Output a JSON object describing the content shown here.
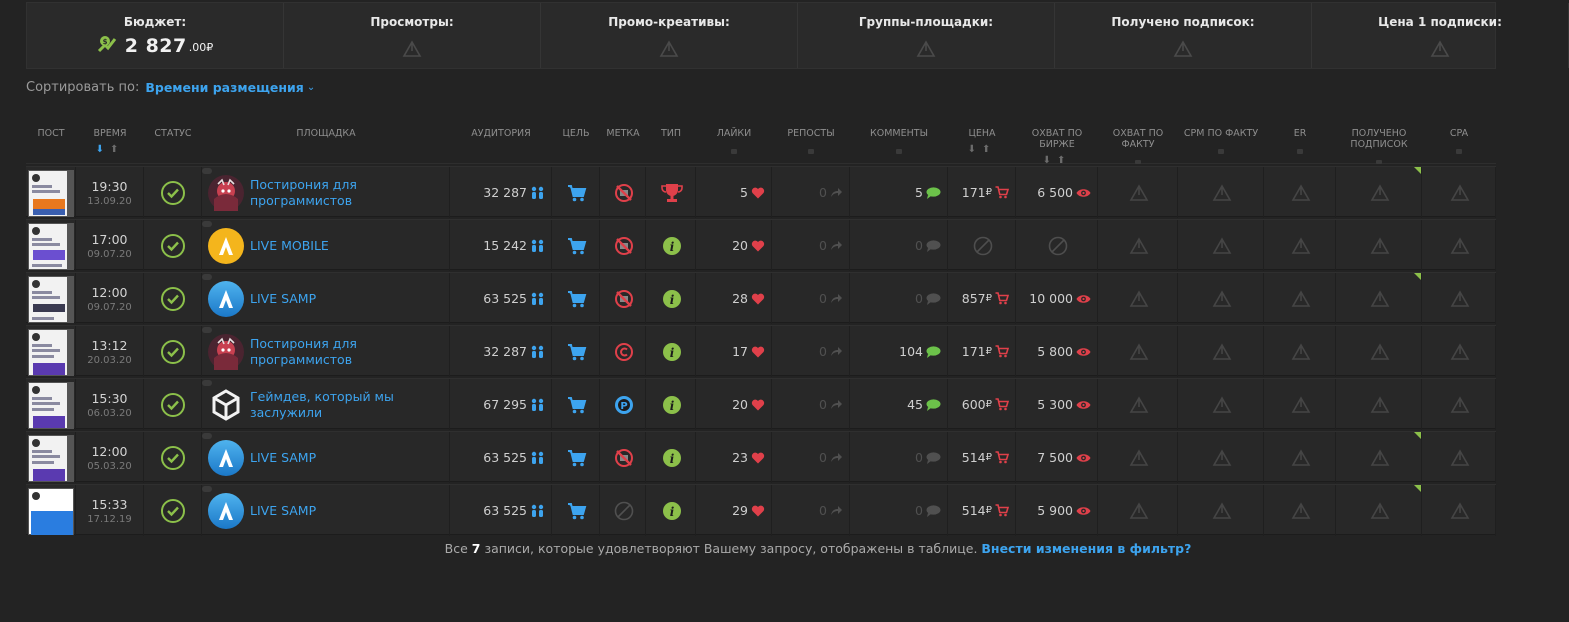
{
  "stats": [
    {
      "title": "Бюджет:",
      "value_main": "2 827",
      "value_dec": ".00",
      "currency": "₽"
    },
    {
      "title": "Просмотры:"
    },
    {
      "title": "Промо-креативы:"
    },
    {
      "title": "Группы-площадки:"
    },
    {
      "title": "Получено подписок:"
    },
    {
      "title": "Цена 1 подписки:"
    }
  ],
  "sort": {
    "label": "Сортировать по:",
    "value": "Времени размещения"
  },
  "columns": [
    {
      "key": "post",
      "label": "ПОСТ"
    },
    {
      "key": "time",
      "label": "ВРЕМЯ"
    },
    {
      "key": "status",
      "label": "СТАТУС"
    },
    {
      "key": "site",
      "label": "ПЛОЩАДКА"
    },
    {
      "key": "audience",
      "label": "АУДИТОРИЯ"
    },
    {
      "key": "goal",
      "label": "ЦЕЛЬ"
    },
    {
      "key": "mark",
      "label": "МЕТКА"
    },
    {
      "key": "type",
      "label": "ТИП"
    },
    {
      "key": "likes",
      "label": "ЛАЙКИ"
    },
    {
      "key": "reposts",
      "label": "РЕПОСТЫ"
    },
    {
      "key": "comments",
      "label": "КОММЕНТЫ"
    },
    {
      "key": "price",
      "label": "ЦЕНА"
    },
    {
      "key": "reach_exchange",
      "label": "ОХВАТ ПО БИРЖЕ"
    },
    {
      "key": "reach_fact",
      "label": "ОХВАТ ПО ФАКТУ"
    },
    {
      "key": "cpm",
      "label": "CPM ПО ФАКТУ"
    },
    {
      "key": "er",
      "label": "ER"
    },
    {
      "key": "subs",
      "label": "ПОЛУЧЕНО ПОДПИСОК"
    },
    {
      "key": "cpa",
      "label": "CPA"
    }
  ],
  "rows": [
    {
      "time": "19:30",
      "date": "13.09.20",
      "site": "Постирония для программистов",
      "avatar": "anime",
      "audience": "32 287",
      "mark": "none",
      "type": "trophy",
      "likes": "5",
      "reposts": "0",
      "comments": "5",
      "comments_active": true,
      "price": "171",
      "reach": "6 500",
      "corner": true
    },
    {
      "time": "17:00",
      "date": "09.07.20",
      "site": "LIVE MOBILE",
      "avatar": "live-yellow",
      "audience": "15 242",
      "mark": "none",
      "type": "info",
      "likes": "20",
      "reposts": "0",
      "comments": "0",
      "comments_active": false,
      "price": "",
      "reach": "",
      "corner": false
    },
    {
      "time": "12:00",
      "date": "09.07.20",
      "site": "LIVE SAMP",
      "avatar": "live-blue",
      "audience": "63 525",
      "mark": "none",
      "type": "info",
      "likes": "28",
      "reposts": "0",
      "comments": "0",
      "comments_active": false,
      "price": "857",
      "reach": "10 000",
      "corner": true
    },
    {
      "time": "13:12",
      "date": "20.03.20",
      "site": "Постирония для программистов",
      "avatar": "anime",
      "audience": "32 287",
      "mark": "copyright",
      "type": "info",
      "likes": "17",
      "reposts": "0",
      "comments": "104",
      "comments_active": true,
      "price": "171",
      "reach": "5 800",
      "corner": false
    },
    {
      "time": "15:30",
      "date": "06.03.20",
      "site": "Геймдев, который мы заслужили",
      "avatar": "unity",
      "audience": "67 295",
      "mark": "promo",
      "type": "info",
      "likes": "20",
      "reposts": "0",
      "comments": "45",
      "comments_active": true,
      "price": "600",
      "reach": "5 300",
      "corner": false
    },
    {
      "time": "12:00",
      "date": "05.03.20",
      "site": "LIVE SAMP",
      "avatar": "live-blue",
      "audience": "63 525",
      "mark": "none",
      "type": "info",
      "likes": "23",
      "reposts": "0",
      "comments": "0",
      "comments_active": false,
      "price": "514",
      "reach": "7 500",
      "corner": true
    },
    {
      "time": "15:33",
      "date": "17.12.19",
      "site": "LIVE SAMP",
      "avatar": "live-blue",
      "audience": "63 525",
      "mark": "empty",
      "type": "info",
      "likes": "29",
      "reposts": "0",
      "comments": "0",
      "comments_active": false,
      "price": "514",
      "reach": "5 900",
      "corner": true
    }
  ],
  "currency": "₽",
  "footer": {
    "prefix": "Все",
    "count": "7",
    "middle": "записи, которые удовлетворяют Вашему запросу, отображены в таблице.",
    "link": "Внести изменения в фильтр?"
  },
  "colors": {
    "accent": "#3da4ef",
    "ok": "#8cc04a",
    "heart": "#e0404a",
    "comment": "#6cc24a",
    "bg": "#232323"
  }
}
